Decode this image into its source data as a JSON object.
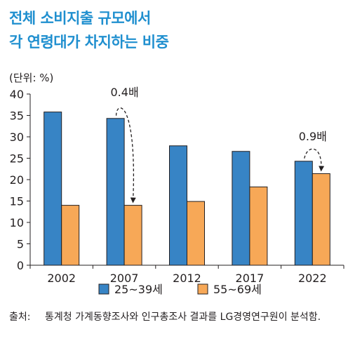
{
  "title_lines": [
    "전체 소비지출 규모에서",
    "각 연령대가 차지하는 비중"
  ],
  "source": {
    "label": "출처:",
    "text": "통계청 가계동향조사와 인구총조사 결과를 LG경영연구원이 분석함."
  },
  "colors": {
    "title": "#1f8fcf",
    "series1": "#3784c5",
    "series2": "#f7a857",
    "axis": "#231f20"
  },
  "chart_data": {
    "type": "bar",
    "unit_label": "(단위: %)",
    "categories": [
      "2002",
      "2007",
      "2012",
      "2017",
      "2022"
    ],
    "series": [
      {
        "name": "25~39세",
        "values": [
          35.8,
          34.3,
          27.9,
          26.6,
          24.3
        ]
      },
      {
        "name": "55~69세",
        "values": [
          14.0,
          14.0,
          14.9,
          18.3,
          21.4
        ]
      }
    ],
    "ylim": [
      0,
      40
    ],
    "yticks": [
      0,
      5,
      10,
      15,
      20,
      25,
      30,
      35,
      40
    ],
    "legend_position": "bottom",
    "annotations": [
      {
        "text": "0.4배",
        "category": "2007",
        "from_series": 0,
        "to_series": 1
      },
      {
        "text": "0.9배",
        "category": "2022",
        "from_series": 0,
        "to_series": 1
      }
    ]
  }
}
